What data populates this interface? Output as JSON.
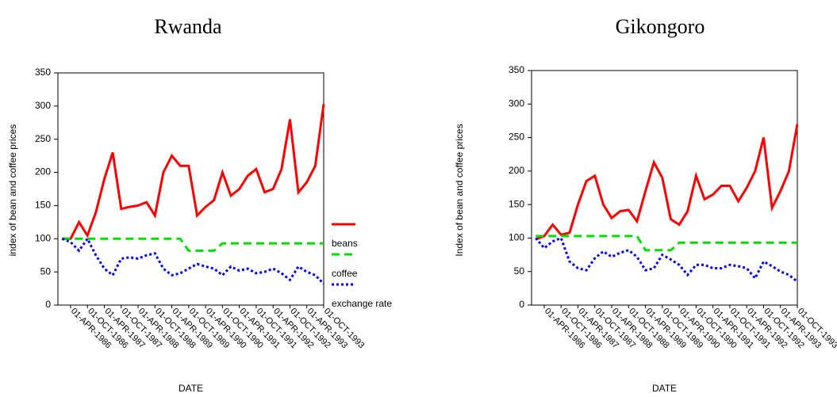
{
  "chart_data": [
    {
      "type": "line",
      "title": "Rwanda",
      "x_label": "DATE",
      "y_label": "index of bean and coffee prices",
      "categories": [
        null,
        "01-APR-1986",
        null,
        "01-OCT-1986",
        null,
        "01-APR-1987",
        null,
        "01-OCT-1987",
        null,
        "01-APR-1988",
        null,
        "01-OCT-1988",
        null,
        "01-APR-1989",
        null,
        "01-OCT-1989",
        null,
        "01-APR-1990",
        null,
        "01-OCT-1990",
        null,
        "01-APR-1991",
        null,
        "01-OCT-1991",
        null,
        "01-APR-1992",
        null,
        "01-OCT-1992",
        null,
        "01-APR-1993",
        null,
        "01-OCT-1993"
      ],
      "ylim": [
        0,
        350
      ],
      "yticks": [
        0,
        50,
        100,
        150,
        200,
        250,
        300,
        350
      ],
      "legend": "right",
      "series": [
        {
          "name": "beans",
          "color": "#ff0000",
          "dash": "solid",
          "values": [
            100,
            100,
            125,
            105,
            140,
            190,
            230,
            145,
            148,
            150,
            155,
            135,
            200,
            225,
            210,
            210,
            135,
            148,
            158,
            200,
            165,
            175,
            195,
            205,
            170,
            175,
            205,
            280,
            170,
            185,
            210,
            303
          ]
        },
        {
          "name": "coffee",
          "color": "#00dd00",
          "dash": "dashed",
          "values": [
            100,
            100,
            100,
            100,
            100,
            100,
            100,
            100,
            100,
            100,
            100,
            100,
            100,
            100,
            100,
            82,
            82,
            82,
            82,
            93,
            93,
            93,
            93,
            93,
            93,
            93,
            93,
            93,
            93,
            93,
            93,
            93
          ]
        },
        {
          "name": "exchange rate",
          "color": "#0000ff",
          "dash": "dotted",
          "values": [
            100,
            95,
            82,
            100,
            75,
            55,
            45,
            70,
            72,
            70,
            75,
            78,
            55,
            45,
            48,
            55,
            62,
            58,
            55,
            45,
            58,
            52,
            55,
            48,
            50,
            55,
            48,
            38,
            58,
            50,
            45,
            32
          ]
        }
      ]
    },
    {
      "type": "line",
      "title": "Gikongoro",
      "x_label": "DATE",
      "y_label": "Index of bean and coffee prices",
      "categories": [
        null,
        "01-APR-1986",
        null,
        "01-OCT-1986",
        null,
        "01-APR-1987",
        null,
        "01-OCT-1987",
        null,
        "01-APR-1988",
        null,
        "01-OCT-1988",
        null,
        "01-APR-1989",
        null,
        "01-OCT-1989",
        null,
        "01-APR-1990",
        null,
        "01-OCT-1990",
        null,
        "01-APR-1991",
        null,
        "01-OCT-1991",
        null,
        "01-APR-1992",
        null,
        "01-OCT-1992",
        null,
        "01-APR-1993",
        null,
        "01-OCT-1993"
      ],
      "ylim": [
        0,
        350
      ],
      "yticks": [
        0,
        50,
        100,
        150,
        200,
        250,
        300,
        350
      ],
      "series": [
        {
          "color": "#ff0000",
          "dash": "solid",
          "values": [
            98,
            103,
            120,
            105,
            108,
            150,
            185,
            193,
            150,
            130,
            140,
            142,
            125,
            170,
            213,
            190,
            128,
            120,
            140,
            193,
            158,
            165,
            178,
            178,
            155,
            175,
            200,
            250,
            145,
            170,
            200,
            270
          ]
        },
        {
          "color": "#00dd00",
          "dash": "dashed",
          "values": [
            103,
            103,
            103,
            103,
            103,
            103,
            103,
            103,
            103,
            103,
            103,
            103,
            103,
            82,
            82,
            82,
            82,
            93,
            93,
            93,
            93,
            93,
            93,
            93,
            93,
            93,
            93,
            93,
            93,
            93,
            93,
            93
          ]
        },
        {
          "color": "#0000ff",
          "dash": "dotted",
          "values": [
            100,
            85,
            95,
            100,
            65,
            55,
            52,
            70,
            80,
            72,
            78,
            82,
            72,
            52,
            55,
            75,
            68,
            60,
            45,
            60,
            60,
            55,
            55,
            60,
            58,
            55,
            40,
            65,
            58,
            50,
            45,
            35
          ]
        }
      ]
    }
  ]
}
